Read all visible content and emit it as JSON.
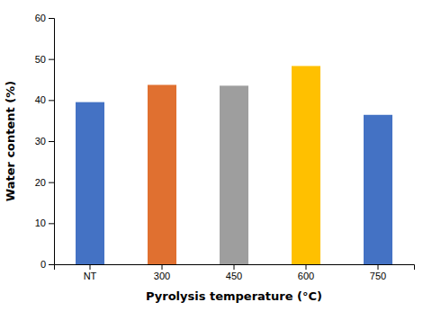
{
  "chart_data": {
    "type": "bar",
    "categories": [
      "NT",
      "300",
      "450",
      "600",
      "750"
    ],
    "values": [
      39.5,
      43.7,
      43.5,
      48.3,
      36.4
    ],
    "colors": [
      "#4472C4",
      "#E07030",
      "#9E9E9E",
      "#FFC000",
      "#4472C4"
    ],
    "xlabel": "Pyrolysis temperature (°C)",
    "ylabel": "Water content (%)",
    "ylim": [
      0,
      60
    ],
    "yticks": [
      0,
      10,
      20,
      30,
      40,
      50,
      60
    ],
    "grid": false
  }
}
